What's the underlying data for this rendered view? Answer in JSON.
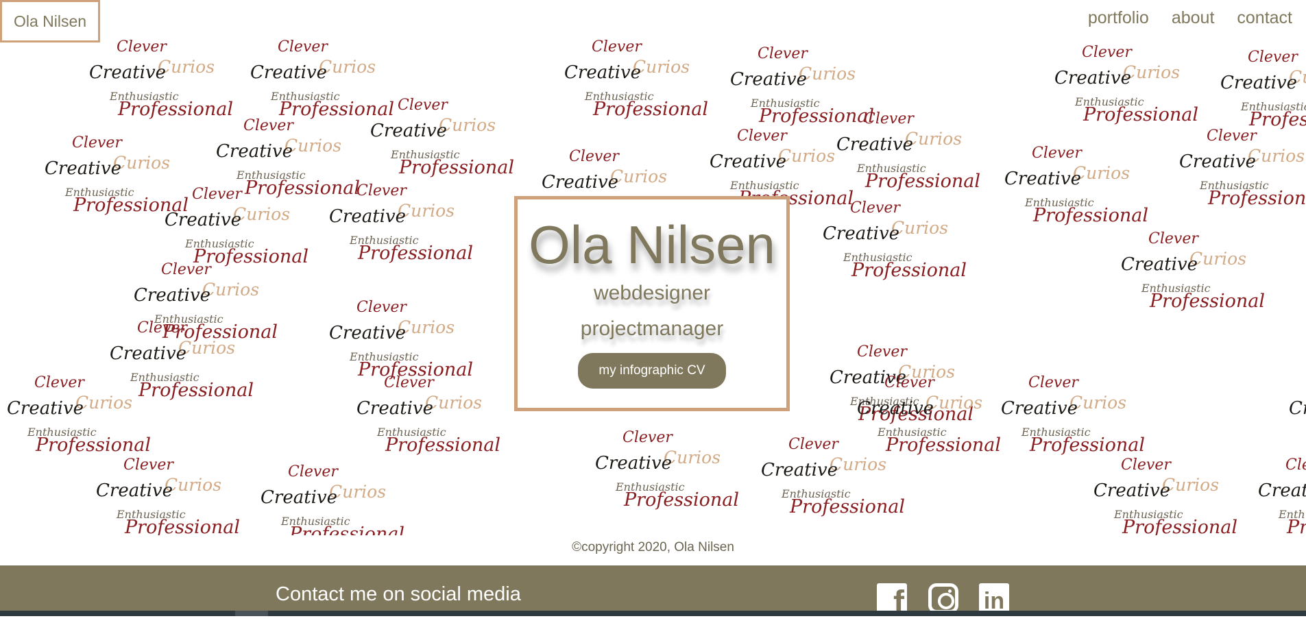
{
  "header": {
    "logo": "Ola Nilsen",
    "nav": [
      "portfolio",
      "about",
      "contact"
    ]
  },
  "pattern_words": {
    "clever": "Clever",
    "curios": "Curios",
    "creative": "Creative",
    "enthusiastic": "Enthusiastic",
    "professional": "Professional"
  },
  "hero": {
    "name": "Ola Nilsen",
    "role1": "webdesigner",
    "role2": "projectmanager",
    "cv_button": "my infographic CV"
  },
  "footer": {
    "copyright": "©copyright 2020, Ola Nilsen",
    "social_title": "Contact me on social media",
    "icons": [
      "facebook-icon",
      "instagram-icon",
      "linkedin-icon"
    ]
  },
  "colors": {
    "accent": "#cfa17a",
    "olive": "#7f785c",
    "wine": "#8a1f22",
    "dark": "#1d1a16"
  }
}
